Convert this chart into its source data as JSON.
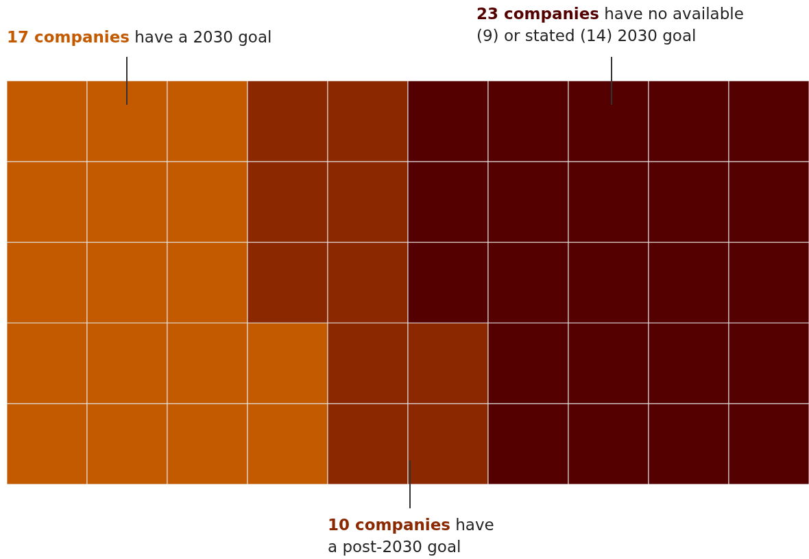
{
  "chart_data": {
    "type": "other",
    "categories": [
      "companies",
      "companies",
      "companies"
    ],
    "values": [
      17,
      10,
      23
    ],
    "colors": [
      "#c45a00",
      "#8b2800",
      "#550000"
    ],
    "data_labels": true,
    "annotations": [
      "have a 2030 goal",
      "have a post-2030 goal",
      "have no available (9) or stated (14) 2030 goal"
    ]
  }
}
